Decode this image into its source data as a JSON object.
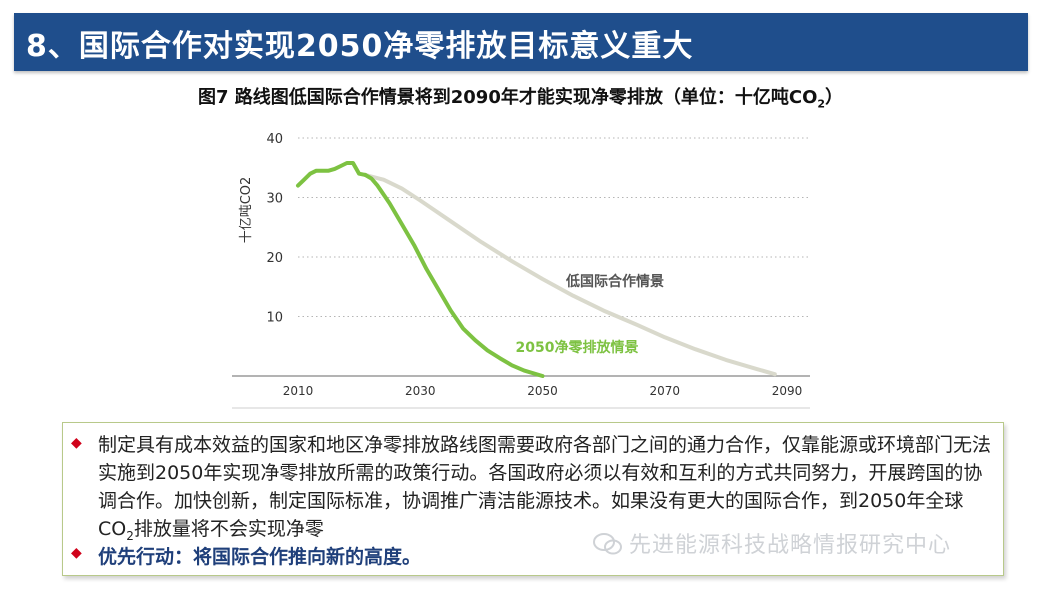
{
  "header": {
    "title": "8、国际合作对实现2050净零排放目标意义重大"
  },
  "figure": {
    "caption_main": "图7 路线图低国际合作情景将到2090年才能实现净零排放（单位：十亿吨CO",
    "caption_sub": "2",
    "caption_end": "）"
  },
  "chart_data": {
    "type": "line",
    "ylabel": "十亿吨CO2",
    "xlim": [
      2010,
      2090
    ],
    "ylim": [
      0,
      40
    ],
    "xticks": [
      "2010",
      "2030",
      "2050",
      "2070",
      "2090"
    ],
    "yticks": [
      "10",
      "20",
      "30",
      "40"
    ],
    "grid": "horizontal-dotted",
    "history": {
      "x": [
        2010,
        2011,
        2012,
        2013,
        2014,
        2015,
        2016,
        2017,
        2018,
        2019,
        2020,
        2021
      ],
      "y": [
        32,
        33,
        34,
        34.5,
        34.5,
        34.5,
        34.8,
        35.3,
        35.8,
        35.8,
        34,
        33.8
      ]
    },
    "series": [
      {
        "name": "低国际合作情景",
        "color": "#d9d9cc",
        "x": [
          2021,
          2024,
          2027,
          2030,
          2035,
          2040,
          2045,
          2050,
          2055,
          2060,
          2065,
          2070,
          2075,
          2080,
          2085,
          2088
        ],
        "y": [
          33.8,
          33,
          31.5,
          29.5,
          26,
          22.5,
          19.3,
          16.3,
          13.5,
          11,
          8.8,
          6.5,
          4.5,
          2.7,
          1.2,
          0.3
        ]
      },
      {
        "name": "2050净零排放情景",
        "color": "#7dc242",
        "x": [
          2021,
          2022,
          2023,
          2025,
          2027,
          2029,
          2031,
          2033,
          2035,
          2037,
          2039,
          2041,
          2043,
          2045,
          2047,
          2050
        ],
        "y": [
          33.8,
          33.2,
          32,
          29,
          25.5,
          22,
          18,
          14.5,
          11,
          8,
          6,
          4.3,
          3,
          1.8,
          0.9,
          0
        ]
      }
    ],
    "history_color": "#7dc242"
  },
  "notes": {
    "para_part1": "制定具有成本效益的国家和地区净零排放路线图需要政府各部门之间的通力合作，仅靠能源或环境部门无法实施到2050年实现净零排放所需的政策行动。各国政府必须以有效和互利的方式共同努力，开展跨国的协调合作。加快创新，制定国际标准，协调推广清洁能源技术。如果没有更大的国际合作，到2050年全球CO",
    "para_sub": "2",
    "para_part2": "排放量将不会实现净零",
    "action": "优先行动：将国际合作推向新的高度。",
    "bullet_symbol": "◆"
  },
  "watermark": {
    "text": "先进能源科技战略情报研究中心"
  }
}
